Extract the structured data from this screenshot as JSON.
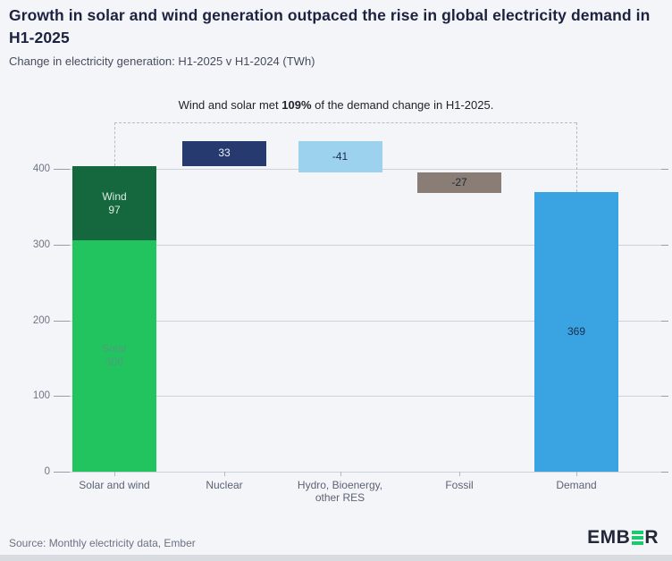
{
  "header": {
    "title": "Growth in solar and wind generation outpaced the rise in global electricity demand in H1-2025",
    "subtitle": "Change in electricity generation: H1-2025 v H1-2024 (TWh)"
  },
  "annotation": {
    "prefix": "Wind and solar met ",
    "bold": "109%",
    "suffix": " of the demand change in H1-2025."
  },
  "footer": {
    "source": "Source: Monthly electricity data, Ember",
    "logo_prefix": "EMB",
    "logo_suffix": "R",
    "logo_green": "#1dc96e",
    "logo_navy": "#232838"
  },
  "chart_data": {
    "type": "bar",
    "subtype": "waterfall",
    "title": "Change in electricity generation: H1-2025 v H1-2024 (TWh)",
    "ylabel": "TWh",
    "ylim": [
      0,
      450
    ],
    "yticks": [
      0,
      100,
      200,
      300,
      400
    ],
    "grid": "horizontal",
    "legend": "none",
    "categories": [
      {
        "lines": [
          "Solar and wind"
        ]
      },
      {
        "lines": [
          "Nuclear"
        ]
      },
      {
        "lines": [
          "Hydro, Bioenergy,",
          "other RES"
        ]
      },
      {
        "lines": [
          "Fossil"
        ]
      },
      {
        "lines": [
          "Demand"
        ]
      }
    ],
    "bars": [
      {
        "category": "Solar and wind",
        "kind": "stacked",
        "base": 0,
        "segments": [
          {
            "name": "Solar",
            "value": 306,
            "color": "#21c45f",
            "label": "Solar\n306",
            "label_color": "#4f9e78"
          },
          {
            "name": "Wind",
            "value": 97,
            "color": "#15673d",
            "label": "Wind\n97",
            "label_color": "#dcebe2"
          }
        ]
      },
      {
        "category": "Nuclear",
        "kind": "float",
        "from": 403,
        "to": 436,
        "value": 33,
        "color": "#263a70",
        "label": "33",
        "label_color": "#eef1f6"
      },
      {
        "category": "Hydro, Bioenergy, other RES",
        "kind": "float",
        "from": 436,
        "to": 395,
        "value": -41,
        "color": "#9cd2ee",
        "label": "-41",
        "label_color": "#1a2b4d"
      },
      {
        "category": "Fossil",
        "kind": "float",
        "from": 395,
        "to": 368,
        "value": -27,
        "color": "#8a7d76",
        "label": "-27",
        "label_color": "#23282e"
      },
      {
        "category": "Demand",
        "kind": "float",
        "from": 0,
        "to": 369,
        "value": 369,
        "color": "#3aa4e3",
        "label": "369",
        "label_color": "#1a2b4d"
      }
    ],
    "bracket": {
      "from_bar": 0,
      "to_bar": 4
    }
  }
}
